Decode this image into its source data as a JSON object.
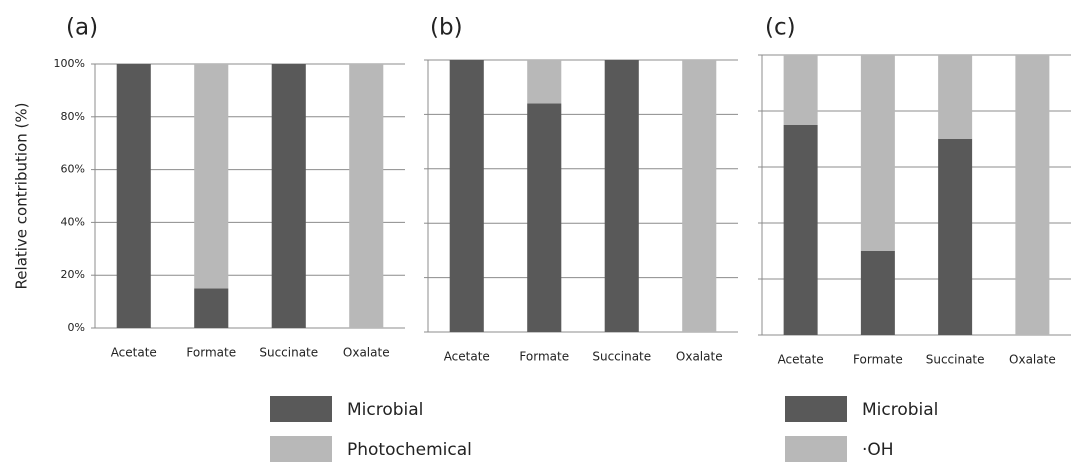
{
  "chart_data": [
    {
      "type": "bar",
      "stacked": true,
      "title": "(a)",
      "ylabel": "Relative contribution (%)",
      "categories": [
        "Acetate",
        "Formate",
        "Succinate",
        "Oxalate"
      ],
      "series": [
        {
          "name": "Microbial",
          "color": "#595959",
          "values": [
            100,
            15,
            100,
            0
          ]
        },
        {
          "name": "Photochemical",
          "color": "#b8b8b8",
          "values": [
            0,
            85,
            0,
            100
          ]
        }
      ],
      "ylim": [
        0,
        100
      ],
      "yticks": [
        {
          "value": 0,
          "label": "0%"
        },
        {
          "value": 20,
          "label": "20%"
        },
        {
          "value": 40,
          "label": "40%"
        },
        {
          "value": 60,
          "label": "60%"
        },
        {
          "value": 80,
          "label": "80%"
        },
        {
          "value": 100,
          "label": "100%"
        }
      ],
      "grid": true,
      "legend": true
    },
    {
      "type": "bar",
      "stacked": true,
      "title": "(b)",
      "categories": [
        "Acetate",
        "Formate",
        "Succinate",
        "Oxalate"
      ],
      "series": [
        {
          "name": "Microbial",
          "color": "#595959",
          "values": [
            100,
            84,
            100,
            0
          ]
        },
        {
          "name": "Photochemical",
          "color": "#b8b8b8",
          "values": [
            0,
            16,
            0,
            100
          ]
        }
      ],
      "ylim": [
        0,
        100
      ],
      "yticks": [
        0,
        20,
        40,
        60,
        80,
        100
      ],
      "ytick_labels": false,
      "grid": true,
      "legend": false
    },
    {
      "type": "bar",
      "stacked": true,
      "title": "(c)",
      "categories": [
        "Acetate",
        "Formate",
        "Succinate",
        "Oxalate"
      ],
      "series": [
        {
          "name": "Microbial",
          "color": "#595959",
          "values": [
            75,
            30,
            70,
            0
          ]
        },
        {
          "name": "·OH",
          "color": "#b8b8b8",
          "values": [
            25,
            70,
            30,
            100
          ]
        }
      ],
      "ylim": [
        0,
        100
      ],
      "yticks": [
        0,
        20,
        40,
        60,
        80,
        100
      ],
      "ytick_labels": false,
      "grid": true,
      "legend": true
    }
  ]
}
